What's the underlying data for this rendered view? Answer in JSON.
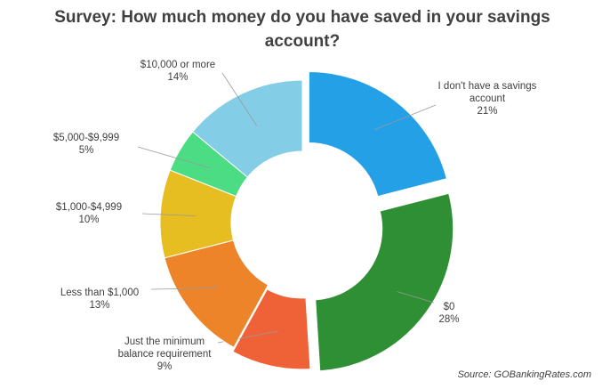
{
  "chart_data": {
    "type": "donut",
    "title": "Survey: How much money do you have saved in your savings account?",
    "categories": [
      "I don't have a savings account",
      "$0",
      "Just the minimum balance requirement",
      "Less than $1,000",
      "$1,000-$4,999",
      "$5,000-$9,999",
      "$10,000 or more"
    ],
    "values": [
      21,
      28,
      9,
      13,
      10,
      5,
      14
    ],
    "value_labels": [
      "21%",
      "28%",
      "9%",
      "13%",
      "10%",
      "5%",
      "14%"
    ],
    "colors": [
      "#23a0e6",
      "#2f8f35",
      "#ef6137",
      "#ee8429",
      "#e6be22",
      "#4cdc83",
      "#84cde6"
    ],
    "source": "Source: GOBankingRates.com"
  }
}
